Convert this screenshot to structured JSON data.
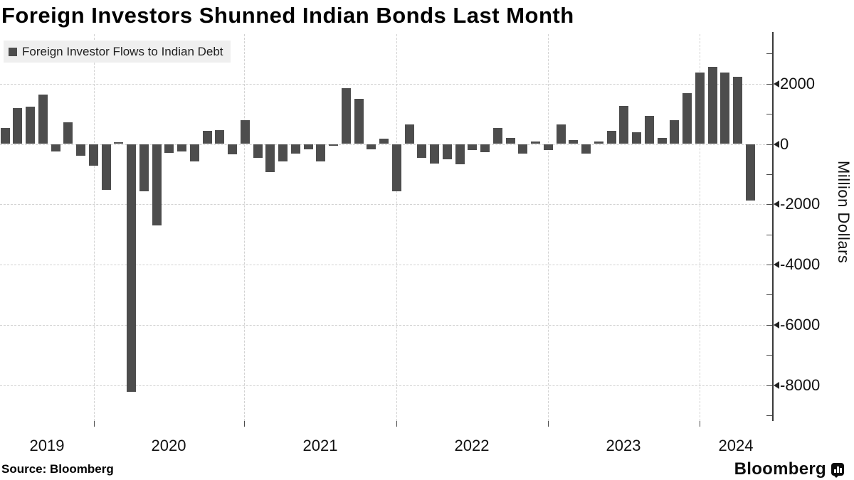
{
  "title": "Foreign Investors Shunned Indian Bonds Last Month",
  "legend": {
    "label": "Foreign Investor Flows to Indian Debt",
    "swatch_color": "#4d4d4d"
  },
  "source": "Source: Bloomberg",
  "branding": {
    "wordmark": "Bloomberg",
    "icon": "bloomberg-chart-bubble-icon"
  },
  "colors": {
    "bar": "#4d4d4d",
    "grid": "#d2d2d2",
    "axis": "#3a3a3a",
    "legend_background": "#efefef",
    "text": "#111111",
    "background": "#ffffff"
  },
  "chart_data": {
    "type": "bar",
    "title": "Foreign Investors Shunned Indian Bonds Last Month",
    "ylabel": "Million Dollars",
    "xlabel": "",
    "legend_position": "top-left",
    "grid": true,
    "bar_color": "#4d4d4d",
    "x_tick_labels": [
      "2019",
      "2020",
      "2021",
      "2022",
      "2023",
      "2024"
    ],
    "y_tick_labels": [
      "2000",
      "0",
      "-2000",
      "-4000",
      "-6000",
      "-8000"
    ],
    "y_tick_values": [
      2000,
      0,
      -2000,
      -4000,
      -6000,
      -8000
    ],
    "ylim": [
      -9300,
      3400
    ],
    "start_month": "2019-05",
    "end_month": "2024-04",
    "series": [
      {
        "name": "Foreign Investor Flows to Indian Debt",
        "values": [
          540,
          1200,
          1230,
          1630,
          -240,
          730,
          -400,
          -710,
          -1530,
          50,
          -8230,
          -1580,
          -2710,
          -300,
          -250,
          -570,
          430,
          470,
          -350,
          780,
          -470,
          -940,
          -570,
          -330,
          -170,
          -570,
          -70,
          1860,
          1510,
          -170,
          170,
          -1580,
          660,
          -450,
          -640,
          -500,
          -680,
          -210,
          -280,
          540,
          210,
          -330,
          90,
          -210,
          640,
          120,
          -310,
          90,
          430,
          1260,
          400,
          930,
          200,
          790,
          1690,
          2370,
          2550,
          2370,
          2230,
          -1870
        ]
      }
    ]
  }
}
